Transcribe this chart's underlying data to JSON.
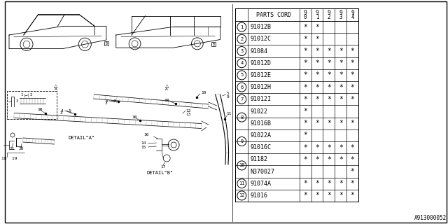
{
  "bg_color": "#ffffff",
  "col_header": "PARTS CORD",
  "year_cols": [
    "9\n0",
    "9\n1",
    "9\n2",
    "9\n3",
    "9\n4"
  ],
  "rows": [
    {
      "ref": "1",
      "part": "91012B",
      "marks": [
        "*",
        "*",
        "",
        "",
        ""
      ],
      "merge": false,
      "first": true
    },
    {
      "ref": "2",
      "part": "91012C",
      "marks": [
        "*",
        "*",
        "",
        "",
        ""
      ],
      "merge": false,
      "first": true
    },
    {
      "ref": "3",
      "part": "91084",
      "marks": [
        "*",
        "*",
        "*",
        "*",
        "*"
      ],
      "merge": false,
      "first": true
    },
    {
      "ref": "4",
      "part": "91012D",
      "marks": [
        "*",
        "*",
        "*",
        "*",
        "*"
      ],
      "merge": false,
      "first": true
    },
    {
      "ref": "5",
      "part": "91012E",
      "marks": [
        "*",
        "*",
        "*",
        "*",
        "*"
      ],
      "merge": false,
      "first": true
    },
    {
      "ref": "6",
      "part": "91012H",
      "marks": [
        "*",
        "*",
        "*",
        "*",
        "*"
      ],
      "merge": false,
      "first": true
    },
    {
      "ref": "7",
      "part": "91012I",
      "marks": [
        "*",
        "*",
        "*",
        "*",
        "*"
      ],
      "merge": false,
      "first": true
    },
    {
      "ref": "8",
      "part": "91022",
      "marks": [
        "*",
        "",
        "",
        "",
        ""
      ],
      "merge": true,
      "first": true
    },
    {
      "ref": "8",
      "part": "91016B",
      "marks": [
        "*",
        "*",
        "*",
        "*",
        "*"
      ],
      "merge": true,
      "first": false
    },
    {
      "ref": "9",
      "part": "91022A",
      "marks": [
        "*",
        "",
        "",
        "",
        ""
      ],
      "merge": true,
      "first": true
    },
    {
      "ref": "9",
      "part": "91016C",
      "marks": [
        "*",
        "*",
        "*",
        "*",
        "*"
      ],
      "merge": true,
      "first": false
    },
    {
      "ref": "10",
      "part": "91182",
      "marks": [
        "*",
        "*",
        "*",
        "*",
        "*"
      ],
      "merge": true,
      "first": true
    },
    {
      "ref": "10",
      "part": "N370027",
      "marks": [
        "",
        "",
        "",
        "",
        "*"
      ],
      "merge": true,
      "first": false
    },
    {
      "ref": "11",
      "part": "91074A",
      "marks": [
        "*",
        "*",
        "*",
        "*",
        "*"
      ],
      "merge": false,
      "first": true
    },
    {
      "ref": "12",
      "part": "91016",
      "marks": [
        "*",
        "*",
        "*",
        "*",
        "*"
      ],
      "merge": false,
      "first": true
    }
  ],
  "footer_text": "A913000052",
  "text_color": "#000000",
  "table_font_size": 6.0,
  "header_font_size": 6.0
}
